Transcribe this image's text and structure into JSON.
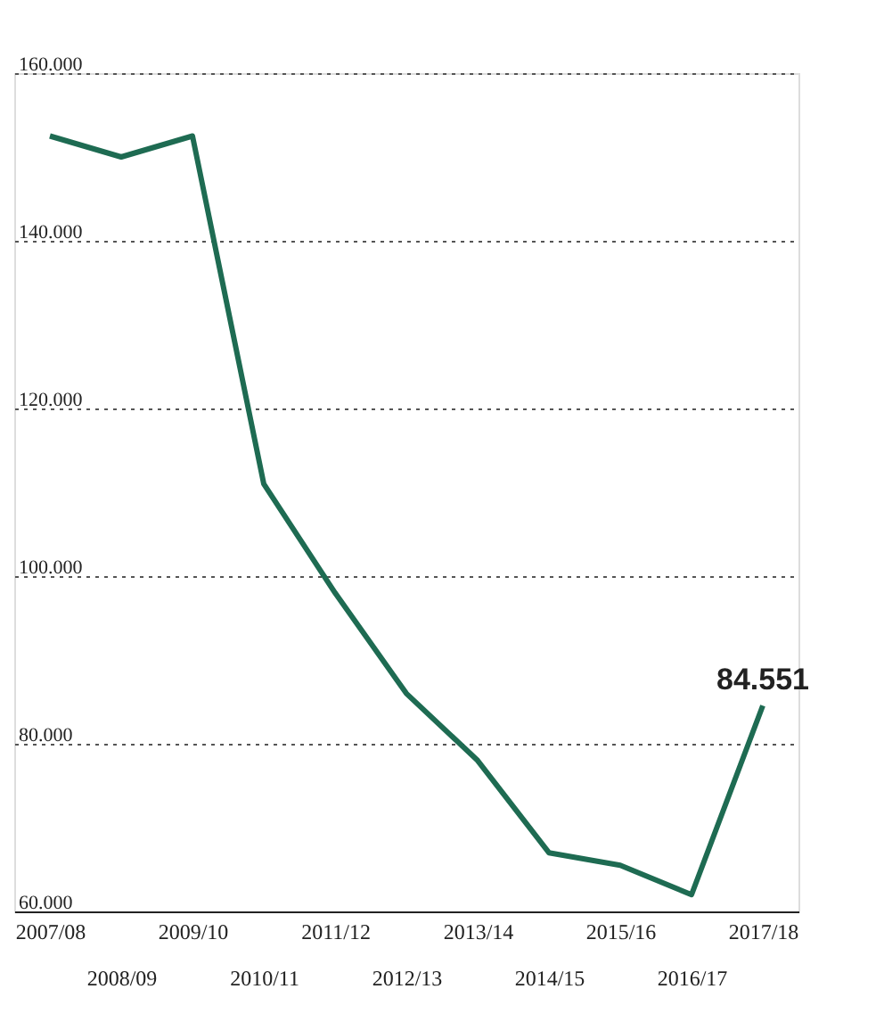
{
  "chart_data": {
    "type": "line",
    "categories": [
      "2007/08",
      "2008/09",
      "2009/10",
      "2010/11",
      "2011/12",
      "2012/13",
      "2013/14",
      "2014/15",
      "2015/16",
      "2016/17",
      "2017/18"
    ],
    "series": [
      {
        "color": "#1e6b52",
        "values": [
          152500,
          150000,
          152500,
          111000,
          98000,
          86000,
          78000,
          67000,
          65500,
          62000,
          84551
        ],
        "value_labels": [
          null,
          null,
          null,
          null,
          null,
          null,
          null,
          null,
          null,
          null,
          "84.551"
        ]
      }
    ],
    "ylim": [
      60000,
      160000
    ],
    "yticks": [
      {
        "value": 60000,
        "label": "60.000"
      },
      {
        "value": 80000,
        "label": "80.000"
      },
      {
        "value": 100000,
        "label": "100.000"
      },
      {
        "value": 120000,
        "label": "120.000"
      },
      {
        "value": 140000,
        "label": "140.000"
      },
      {
        "value": 160000,
        "label": "160.000"
      }
    ],
    "grid": "y",
    "line_style": "solid",
    "marker": "none"
  }
}
